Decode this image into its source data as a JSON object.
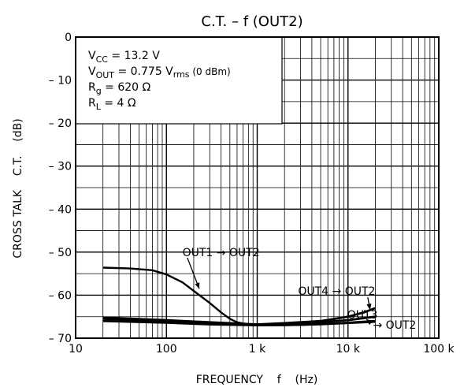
{
  "chart_data": {
    "type": "line",
    "title": "C.T.  –  f (OUT2)",
    "xlabel": "FREQUENCY    f    (Hz)",
    "ylabel": "CROSS TALK    C.T.    (dB)",
    "xscale": "log",
    "xlim": [
      10,
      100000
    ],
    "ylim": [
      -70,
      0
    ],
    "grid": true,
    "x_ticks": [
      {
        "value": 10,
        "label": "10"
      },
      {
        "value": 100,
        "label": "100"
      },
      {
        "value": 1000,
        "label": "1 k"
      },
      {
        "value": 10000,
        "label": "10 k"
      },
      {
        "value": 100000,
        "label": "100 k"
      }
    ],
    "y_ticks": [
      {
        "value": 0,
        "label": "0"
      },
      {
        "value": -10,
        "label": "– 10"
      },
      {
        "value": -20,
        "label": "– 20"
      },
      {
        "value": -30,
        "label": "– 30"
      },
      {
        "value": -40,
        "label": "– 40"
      },
      {
        "value": -50,
        "label": "– 50"
      },
      {
        "value": -60,
        "label": "– 60"
      },
      {
        "value": -70,
        "label": "– 70"
      }
    ],
    "conditions": [
      {
        "sym": "V",
        "sub": "CC",
        "rest": " = 13.2 V"
      },
      {
        "sym": "V",
        "sub": "OUT",
        "rest": " = 0.775 V",
        "rsub": "rms",
        "tail": " (0 dBm)"
      },
      {
        "sym": "R",
        "sub": "g",
        "rest": " = 620 Ω"
      },
      {
        "sym": "R",
        "sub": "L",
        "rest": " = 4 Ω"
      }
    ],
    "series": [
      {
        "name": "OUT1 → OUT2",
        "points": [
          [
            20,
            -53.6
          ],
          [
            40,
            -53.8
          ],
          [
            70,
            -54.2
          ],
          [
            100,
            -55.2
          ],
          [
            150,
            -57
          ],
          [
            200,
            -59
          ],
          [
            300,
            -61.8
          ],
          [
            400,
            -64
          ],
          [
            500,
            -65.5
          ],
          [
            600,
            -66.3
          ],
          [
            800,
            -66.8
          ],
          [
            1000,
            -67
          ],
          [
            2000,
            -67
          ],
          [
            5000,
            -66.8
          ],
          [
            10000,
            -66.5
          ],
          [
            20000,
            -66.2
          ]
        ]
      },
      {
        "name": "OUT4 → OUT2",
        "points": [
          [
            20,
            -65.2
          ],
          [
            100,
            -65.8
          ],
          [
            300,
            -66.3
          ],
          [
            1000,
            -66.8
          ],
          [
            2000,
            -66.5
          ],
          [
            5000,
            -66
          ],
          [
            10000,
            -65
          ],
          [
            15000,
            -64
          ],
          [
            20000,
            -63
          ]
        ]
      },
      {
        "name": "OUT3",
        "points": [
          [
            20,
            -65.5
          ],
          [
            100,
            -66
          ],
          [
            300,
            -66.5
          ],
          [
            1000,
            -67
          ],
          [
            3000,
            -66.6
          ],
          [
            10000,
            -65.8
          ],
          [
            20000,
            -65
          ]
        ]
      },
      {
        "name": "→ OUT2",
        "points": [
          [
            20,
            -66
          ],
          [
            100,
            -66.4
          ],
          [
            300,
            -66.8
          ],
          [
            1000,
            -67
          ],
          [
            3000,
            -66.9
          ],
          [
            10000,
            -66.4
          ],
          [
            20000,
            -66
          ]
        ]
      }
    ],
    "annotations": [
      {
        "text": "OUT1 → OUT2",
        "x": 400,
        "y": -50
      },
      {
        "text": "OUT4 → OUT2",
        "x": 20000,
        "y": -59
      },
      {
        "text": "OUT3",
        "x": 20000,
        "y": -64.5
      },
      {
        "text": "→ OUT2",
        "x": 20000,
        "y": -66.9
      }
    ]
  }
}
